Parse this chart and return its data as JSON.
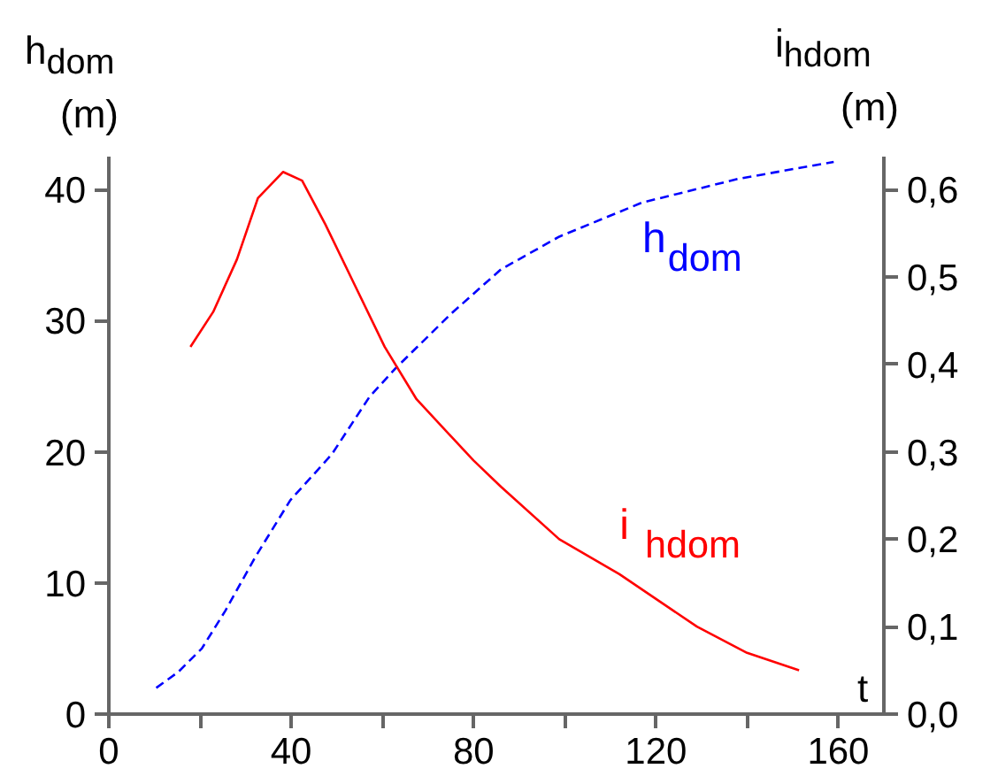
{
  "chart_data": {
    "type": "line",
    "xlabel": "t",
    "ylabel": "h$_{dom}$ (m)",
    "y2label": "i$_{hdom}$ (m)",
    "xlim": [
      0,
      170
    ],
    "xticks": [
      0,
      {
        "value": 20,
        "label": null
      },
      40,
      {
        "value": 60,
        "label": null
      },
      80,
      {
        "value": 100,
        "label": null
      },
      120,
      {
        "value": 140,
        "label": null
      },
      160
    ],
    "ylim": [
      0,
      42.5
    ],
    "yticks": [
      0,
      10,
      20,
      30,
      40
    ],
    "y2lim": [
      0,
      0.6375
    ],
    "y2ticks": [
      {
        "value": 0,
        "label": "0,0"
      },
      {
        "value": 0.1,
        "label": "0,1"
      },
      {
        "value": 0.2,
        "label": "0,2"
      },
      {
        "value": 0.3,
        "label": "0,3"
      },
      {
        "value": 0.4,
        "label": "0,4"
      },
      {
        "value": 0.5,
        "label": "0,5"
      },
      {
        "value": 0.6,
        "label": "0,6"
      }
    ],
    "series": [
      {
        "name": "h$_{dom}$",
        "color": "#0000ff",
        "line_style": "dashed",
        "x": [
          10.4,
          15.2,
          20.4,
          25.6,
          32,
          39.8,
          48.9,
          57.2,
          63,
          75,
          86,
          98.8,
          117,
          138,
          159
        ],
        "values": [
          2.0,
          3.2,
          5.0,
          7.9,
          11.9,
          16.3,
          19.8,
          24.2,
          26.4,
          30.5,
          33.9,
          36.4,
          39.0,
          40.8,
          42.1
        ]
      },
      {
        "name": "i$_{hdom}$",
        "color": "#ff0000",
        "line_style": "solid",
        "axis": "y2",
        "x": [
          17.9,
          22.9,
          28.1,
          32.7,
          38.2,
          42.4,
          47.5,
          54,
          60.5,
          67.5,
          80,
          86,
          98.8,
          112,
          129,
          140,
          151.4
        ],
        "values": [
          0.42,
          0.46,
          0.52,
          0.59,
          0.62,
          0.61,
          0.56,
          0.49,
          0.42,
          0.36,
          0.29,
          0.26,
          0.2,
          0.16,
          0.1,
          0.07,
          0.05
        ]
      }
    ]
  }
}
